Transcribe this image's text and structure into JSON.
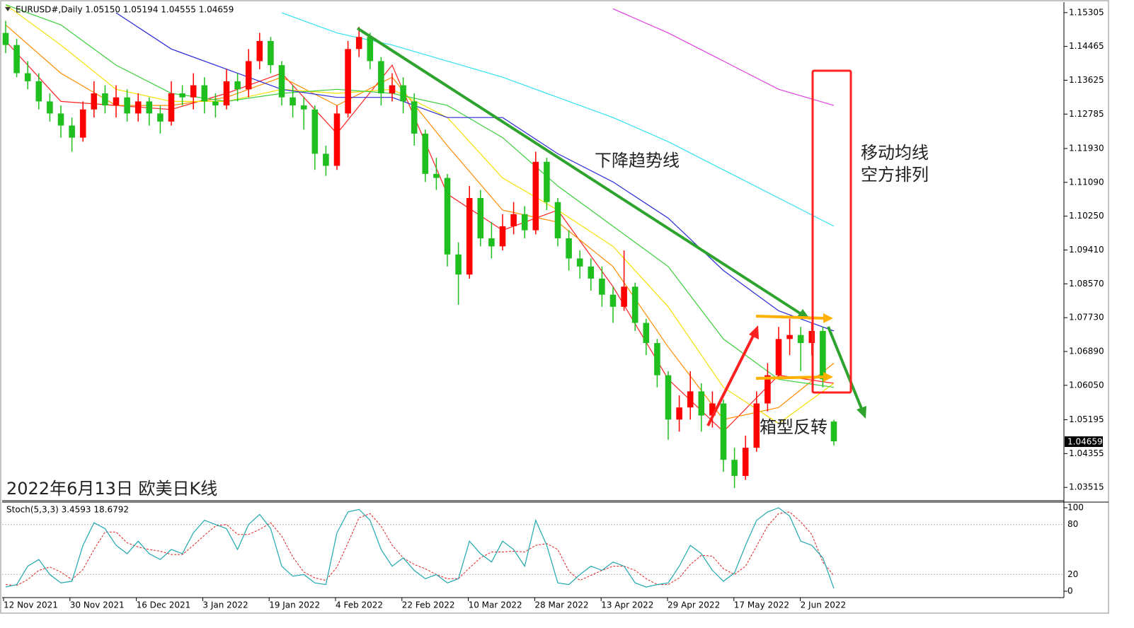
{
  "chart_data": {
    "type": "candlestick",
    "header": "EURUSD#,Daily  1.05150 1.05194 1.04555 1.04659",
    "title": "2022年6月13日 欧美日K线",
    "annotations": [
      "下降趋势线",
      "移动均线",
      "空方排列",
      "箱型反转"
    ],
    "current_price": "1.04659",
    "up_color": "#ff0000",
    "down_color": "#1fbf1f",
    "dates": [
      "12 Nov 2021",
      "30 Nov 2021",
      "16 Dec 2021",
      "3 Jan 2022",
      "19 Jan 2022",
      "4 Feb 2022",
      "22 Feb 2022",
      "10 Mar 2022",
      "28 Mar 2022",
      "13 Apr 2022",
      "29 Apr 2022",
      "17 May 2022",
      "2 Jun 2022"
    ],
    "ylim": [
      1.0322,
      1.1553
    ],
    "yticks": [
      1.15305,
      1.14465,
      1.13625,
      1.12785,
      {
        "value": 1.1193,
        "label": "1.11930"
      },
      {
        "value": 1.1109,
        "label": "1.11090"
      },
      {
        "value": 1.1025,
        "label": "1.10250"
      },
      {
        "value": 1.0941,
        "label": "1.09410"
      },
      {
        "value": 1.0857,
        "label": "1.08570"
      },
      {
        "value": 1.0773,
        "label": "1.07730"
      },
      {
        "value": 1.0689,
        "label": "1.06890"
      },
      {
        "value": 1.0605,
        "label": "1.06050"
      },
      1.05195,
      1.04355,
      1.03515
    ],
    "candles": [
      [
        1.148,
        1.151,
        1.143,
        1.145
      ],
      [
        1.145,
        1.1465,
        1.137,
        1.138
      ],
      [
        1.138,
        1.141,
        1.134,
        1.136
      ],
      [
        1.136,
        1.138,
        1.129,
        1.131
      ],
      [
        1.131,
        1.133,
        1.126,
        1.128
      ],
      [
        1.128,
        1.13,
        1.122,
        1.125
      ],
      [
        1.125,
        1.127,
        1.1185,
        1.122
      ],
      [
        1.122,
        1.131,
        1.121,
        1.129
      ],
      [
        1.129,
        1.136,
        1.127,
        1.133
      ],
      [
        1.133,
        1.135,
        1.128,
        1.13
      ],
      [
        1.13,
        1.135,
        1.127,
        1.132
      ],
      [
        1.132,
        1.134,
        1.126,
        1.128
      ],
      [
        1.128,
        1.133,
        1.126,
        1.131
      ],
      [
        1.131,
        1.132,
        1.125,
        1.128
      ],
      [
        1.128,
        1.13,
        1.123,
        1.126
      ],
      [
        1.126,
        1.136,
        1.125,
        1.133
      ],
      [
        1.133,
        1.135,
        1.13,
        1.132
      ],
      [
        1.132,
        1.138,
        1.129,
        1.135
      ],
      [
        1.135,
        1.137,
        1.128,
        1.131
      ],
      [
        1.131,
        1.133,
        1.127,
        1.13
      ],
      [
        1.13,
        1.139,
        1.129,
        1.136
      ],
      [
        1.136,
        1.138,
        1.131,
        1.134
      ],
      [
        1.134,
        1.144,
        1.132,
        1.141
      ],
      [
        1.141,
        1.148,
        1.139,
        1.146
      ],
      [
        1.146,
        1.147,
        1.138,
        1.14
      ],
      [
        1.14,
        1.141,
        1.13,
        1.132
      ],
      [
        1.132,
        1.135,
        1.127,
        1.13
      ],
      [
        1.13,
        1.132,
        1.124,
        1.129
      ],
      [
        1.129,
        1.13,
        1.114,
        1.118
      ],
      [
        1.118,
        1.12,
        1.1125,
        1.115
      ],
      [
        1.115,
        1.13,
        1.114,
        1.128
      ],
      [
        1.128,
        1.146,
        1.127,
        1.144
      ],
      [
        1.144,
        1.1495,
        1.142,
        1.147
      ],
      [
        1.147,
        1.148,
        1.139,
        1.141
      ],
      [
        1.141,
        1.142,
        1.13,
        1.133
      ],
      [
        1.133,
        1.138,
        1.131,
        1.135
      ],
      [
        1.135,
        1.137,
        1.128,
        1.131
      ],
      [
        1.131,
        1.133,
        1.12,
        1.123
      ],
      [
        1.123,
        1.124,
        1.111,
        1.113
      ],
      [
        1.113,
        1.117,
        1.109,
        1.112
      ],
      [
        1.112,
        1.113,
        1.09,
        1.093
      ],
      [
        1.093,
        1.096,
        1.0805,
        1.088
      ],
      [
        1.088,
        1.11,
        1.087,
        1.107
      ],
      [
        1.107,
        1.109,
        1.095,
        1.097
      ],
      [
        1.097,
        1.101,
        1.092,
        1.095
      ],
      [
        1.095,
        1.103,
        1.094,
        1.1
      ],
      [
        1.1,
        1.106,
        1.098,
        1.103
      ],
      [
        1.103,
        1.105,
        1.097,
        1.099
      ],
      [
        1.099,
        1.1185,
        1.098,
        1.116
      ],
      [
        1.116,
        1.117,
        1.104,
        1.106
      ],
      [
        1.106,
        1.107,
        1.095,
        1.097
      ],
      [
        1.097,
        1.099,
        1.089,
        1.092
      ],
      [
        1.092,
        1.094,
        1.087,
        1.09
      ],
      [
        1.09,
        1.092,
        1.084,
        1.087
      ],
      [
        1.087,
        1.09,
        1.08,
        1.083
      ],
      [
        1.083,
        1.085,
        1.076,
        1.08
      ],
      [
        1.08,
        1.094,
        1.079,
        1.085
      ],
      [
        1.085,
        1.086,
        1.074,
        1.076
      ],
      [
        1.076,
        1.077,
        1.068,
        1.071
      ],
      [
        1.071,
        1.072,
        1.06,
        1.063
      ],
      [
        1.063,
        1.064,
        1.047,
        1.052
      ],
      [
        1.052,
        1.058,
        1.049,
        1.055
      ],
      [
        1.055,
        1.064,
        1.052,
        1.059
      ],
      [
        1.059,
        1.061,
        1.049,
        1.053
      ],
      [
        1.053,
        1.059,
        1.05,
        1.056
      ],
      [
        1.056,
        1.057,
        1.039,
        1.042
      ],
      [
        1.042,
        1.045,
        1.035,
        1.038
      ],
      [
        1.038,
        1.048,
        1.037,
        1.045
      ],
      [
        1.045,
        1.059,
        1.044,
        1.056
      ],
      [
        1.056,
        1.066,
        1.054,
        1.063
      ],
      [
        1.063,
        1.075,
        1.062,
        1.072
      ],
      [
        1.072,
        1.077,
        1.068,
        1.073
      ],
      [
        1.073,
        1.075,
        1.064,
        1.071
      ],
      [
        1.071,
        1.076,
        1.068,
        1.074
      ],
      [
        1.074,
        1.075,
        1.06,
        1.062
      ],
      [
        1.0515,
        1.05194,
        1.04555,
        1.04659
      ]
    ],
    "moving_averages": [
      {
        "color": "#ff2020",
        "values": [
          1.146,
          1.131,
          1.13,
          1.129,
          1.133,
          1.138,
          1.123,
          1.14,
          1.108,
          1.099,
          1.104,
          1.085,
          1.062,
          1.049,
          1.063,
          1.061
        ]
      },
      {
        "color": "#ff8c00",
        "values": [
          1.15,
          1.138,
          1.13,
          1.13,
          1.132,
          1.137,
          1.13,
          1.137,
          1.12,
          1.104,
          1.101,
          1.09,
          1.07,
          1.052,
          1.055,
          1.066
        ]
      },
      {
        "color": "#f5e000",
        "values": [
          1.155,
          1.145,
          1.134,
          1.131,
          1.131,
          1.134,
          1.133,
          1.134,
          1.127,
          1.112,
          1.104,
          1.095,
          1.08,
          1.06,
          1.051,
          1.061
        ]
      },
      {
        "color": "#3ccf3c",
        "values": [
          1.155,
          1.15,
          1.14,
          1.133,
          1.131,
          1.133,
          1.134,
          1.133,
          1.13,
          1.122,
          1.11,
          1.1,
          1.09,
          1.072,
          1.062,
          1.06
        ]
      },
      {
        "color": "#2828d8",
        "values": [
          null,
          null,
          1.153,
          1.144,
          1.139,
          1.134,
          1.132,
          1.132,
          1.127,
          1.127,
          1.118,
          1.111,
          1.102,
          1.089,
          1.079,
          1.074
        ]
      },
      {
        "color": "#33e0f0",
        "values": [
          null,
          null,
          null,
          null,
          null,
          1.153,
          1.148,
          1.145,
          1.141,
          1.137,
          1.132,
          1.127,
          1.121,
          1.114,
          1.107,
          1.1
        ]
      },
      {
        "color": "#e040e0",
        "values": [
          null,
          null,
          null,
          null,
          null,
          null,
          null,
          null,
          null,
          null,
          null,
          1.154,
          1.148,
          1.141,
          1.134,
          1.13
        ]
      }
    ],
    "stoch": {
      "label": "Stoch(5,3,3) 3.4593 18.6792",
      "ylim": [
        -7.6,
        105.9
      ],
      "yticks": [
        0,
        20,
        80,
        100
      ],
      "k_color": "#20a8b0",
      "d_color": "#e02020",
      "k": [
        5,
        8,
        30,
        38,
        20,
        10,
        12,
        55,
        82,
        75,
        55,
        45,
        60,
        45,
        38,
        50,
        45,
        70,
        85,
        80,
        75,
        50,
        80,
        92,
        75,
        30,
        18,
        20,
        10,
        8,
        70,
        95,
        98,
        85,
        50,
        30,
        40,
        25,
        15,
        20,
        10,
        15,
        60,
        45,
        35,
        60,
        50,
        30,
        85,
        55,
        10,
        8,
        20,
        30,
        25,
        35,
        30,
        10,
        5,
        8,
        10,
        30,
        55,
        45,
        25,
        12,
        22,
        55,
        85,
        95,
        100,
        90,
        60,
        55,
        40,
        3.4593
      ],
      "d": [
        8,
        7,
        14,
        25,
        29,
        23,
        14,
        26,
        50,
        71,
        71,
        58,
        53,
        50,
        48,
        44,
        44,
        55,
        67,
        78,
        80,
        68,
        68,
        74,
        82,
        66,
        41,
        23,
        16,
        13,
        29,
        58,
        88,
        93,
        78,
        55,
        40,
        32,
        27,
        20,
        15,
        15,
        28,
        40,
        47,
        47,
        48,
        47,
        55,
        57,
        50,
        24,
        13,
        19,
        25,
        30,
        30,
        25,
        15,
        8,
        8,
        16,
        32,
        43,
        42,
        27,
        20,
        30,
        54,
        78,
        93,
        95,
        83,
        68,
        35,
        18.6792
      ]
    }
  }
}
